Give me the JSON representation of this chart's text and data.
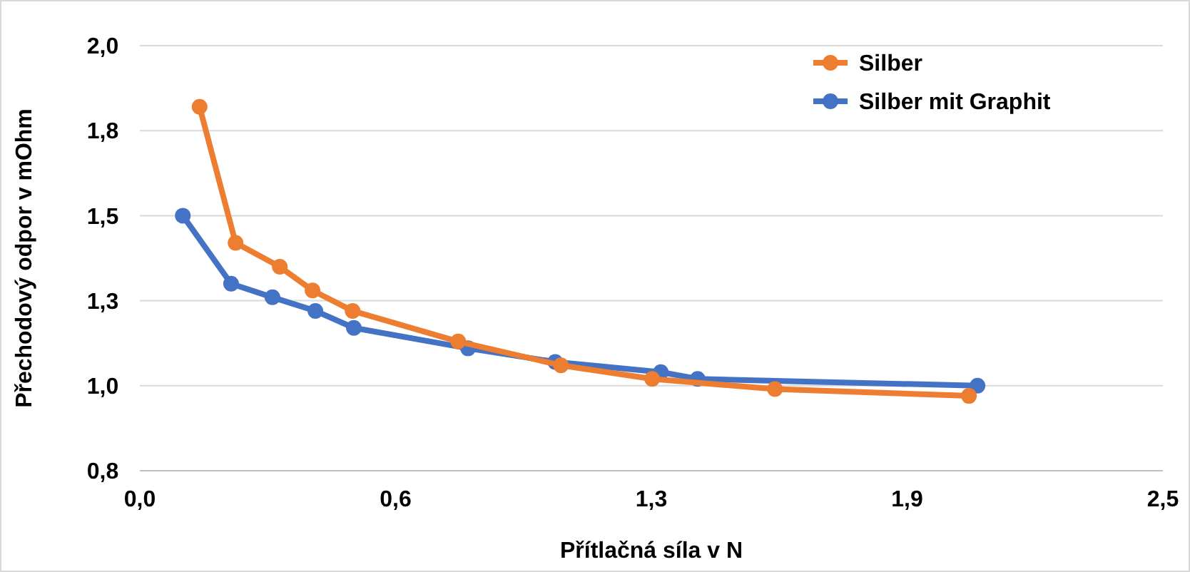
{
  "chart_data": {
    "type": "line",
    "xlabel": "Přítlačná síla v N",
    "ylabel": "Přechodový odpor v mOhm",
    "xlim": [
      0,
      2.5
    ],
    "xticks": [
      {
        "value": 0,
        "label": "0,0"
      },
      {
        "value": 0.625,
        "label": "0,6"
      },
      {
        "value": 1.25,
        "label": "1,3"
      },
      {
        "value": 1.875,
        "label": "1,9"
      },
      {
        "value": 2.5,
        "label": "2,5"
      }
    ],
    "ylim": [
      0.75,
      2
    ],
    "yticks": [
      {
        "value": 0.75,
        "label": "0,8"
      },
      {
        "value": 1,
        "label": "1,0"
      },
      {
        "value": 1.25,
        "label": "1,3"
      },
      {
        "value": 1.5,
        "label": "1,5"
      },
      {
        "value": 1.75,
        "label": "1,8"
      },
      {
        "value": 2,
        "label": "2,0"
      }
    ],
    "grid": "y",
    "legend": "top right",
    "marker": "circle",
    "line_style": "solid",
    "series": [
      {
        "name": "Silber",
        "color": "#ed7d31",
        "x": [
          0.146,
          0.234,
          0.342,
          0.422,
          0.52,
          0.778,
          1.029,
          1.252,
          1.552,
          2.026
        ],
        "values": [
          1.82,
          1.42,
          1.35,
          1.28,
          1.22,
          1.13,
          1.06,
          1.02,
          0.99,
          0.97
        ]
      },
      {
        "name": "Silber mit Graphit",
        "color": "#4472c4",
        "x": [
          0.105,
          0.223,
          0.324,
          0.429,
          0.523,
          0.802,
          1.015,
          1.273,
          1.363,
          2.047
        ],
        "values": [
          1.5,
          1.3,
          1.26,
          1.22,
          1.17,
          1.11,
          1.07,
          1.04,
          1.02,
          1.0
        ]
      }
    ]
  }
}
